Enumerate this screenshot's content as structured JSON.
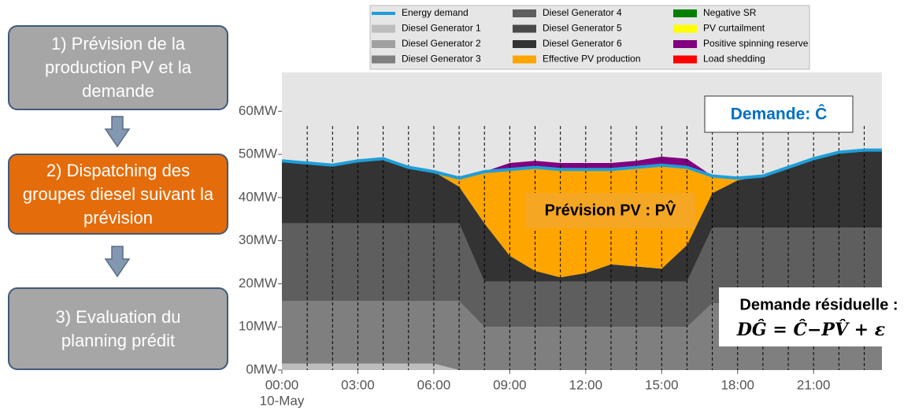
{
  "flow": {
    "steps": [
      "1) Prévision de la production PV et la demande",
      "2) Dispatching des groupes diesel suivant la prévision",
      "3) Evaluation du planning prédit"
    ]
  },
  "chart_data": {
    "type": "area",
    "stacked": true,
    "x": [
      0,
      1,
      2,
      3,
      4,
      5,
      6,
      7,
      8,
      9,
      10,
      11,
      12,
      13,
      14,
      15,
      16,
      17,
      18,
      19,
      20,
      21,
      22,
      23,
      23.7
    ],
    "xlim": [
      0,
      23.7
    ],
    "xticks": [
      {
        "value": 0,
        "label": "00:00"
      },
      {
        "value": 3,
        "label": "03:00"
      },
      {
        "value": 6,
        "label": "06:00"
      },
      {
        "value": 9,
        "label": "09:00"
      },
      {
        "value": 12,
        "label": "12:00"
      },
      {
        "value": 15,
        "label": "15:00"
      },
      {
        "value": 18,
        "label": "18:00"
      },
      {
        "value": 21,
        "label": "21:00"
      }
    ],
    "date_label": "10-May",
    "ylim": [
      0,
      69
    ],
    "yticks": [
      {
        "value": 0,
        "label": "0MW"
      },
      {
        "value": 10,
        "label": "10MW"
      },
      {
        "value": 20,
        "label": "20MW"
      },
      {
        "value": 30,
        "label": "30MW"
      },
      {
        "value": 40,
        "label": "40MW"
      },
      {
        "value": 50,
        "label": "50MW"
      },
      {
        "value": 60,
        "label": "60MW"
      }
    ],
    "series": [
      {
        "name": "Energy demand",
        "type": "line",
        "color": "#1f9ed8",
        "values": [
          48.5,
          48,
          47.5,
          48.5,
          49,
          47,
          46,
          44.5,
          46,
          46.5,
          47,
          46.5,
          46.5,
          46.5,
          47,
          47.5,
          47,
          45,
          44.5,
          45,
          47,
          49,
          50.5,
          51,
          51
        ]
      },
      {
        "name": "Diesel Generator 1",
        "color": "#bdbdbd",
        "values": [
          1.5,
          1.5,
          1.5,
          1.5,
          1.5,
          1.5,
          1.5,
          0,
          0,
          0,
          0,
          0,
          0,
          0,
          0,
          0,
          0,
          0,
          0,
          0,
          0,
          0,
          0,
          0,
          0
        ]
      },
      {
        "name": "Diesel Generator 2",
        "color": "#a0a0a0",
        "values": [
          0,
          0,
          0,
          0,
          0,
          0,
          0,
          0,
          0,
          0,
          0,
          0,
          0,
          0,
          0,
          0,
          0,
          0,
          0,
          0,
          0,
          0,
          0,
          0,
          0
        ]
      },
      {
        "name": "Diesel Generator 3",
        "color": "#7f7f7f",
        "values": [
          14.5,
          14.5,
          14.5,
          14.5,
          14.5,
          14.5,
          14.5,
          16,
          10,
          10,
          10,
          10,
          10,
          10,
          10,
          10,
          10,
          15.5,
          15.5,
          15.5,
          15.5,
          15.5,
          15.5,
          15.5,
          15.5
        ]
      },
      {
        "name": "Diesel Generator 4",
        "color": "#5e5e5e",
        "values": [
          18,
          18,
          18,
          18,
          18,
          18,
          18,
          18,
          10.5,
          10.5,
          10.5,
          10.5,
          10.5,
          10.5,
          10.5,
          10.5,
          10.5,
          17.5,
          17.5,
          17.5,
          17.5,
          17.5,
          17.5,
          17.5,
          17.5
        ]
      },
      {
        "name": "Diesel Generator 5",
        "color": "#4a4a4a",
        "values": [
          0,
          0,
          0,
          0,
          0,
          0,
          0,
          0,
          0,
          0,
          0,
          0,
          0,
          0,
          0,
          0,
          0,
          0,
          0,
          0,
          0,
          0,
          0,
          0,
          0
        ]
      },
      {
        "name": "Diesel Generator 6",
        "color": "#333333",
        "values": [
          14.5,
          14,
          13.5,
          14.5,
          15,
          13,
          12,
          8.5,
          13.5,
          6,
          2.5,
          1,
          2,
          4,
          3.5,
          3,
          8.5,
          8,
          11,
          12,
          14,
          16,
          17.5,
          18,
          18
        ]
      },
      {
        "name": "Effective PV production",
        "color": "#ffa500",
        "values": [
          0,
          0,
          0,
          0,
          0,
          0,
          0,
          2,
          12,
          20,
          24,
          25,
          24,
          22,
          23,
          24,
          18,
          4,
          0.5,
          0,
          0,
          0,
          0,
          0,
          0
        ]
      },
      {
        "name": "Negative SR",
        "color": "#008000",
        "values": [
          0,
          0,
          0,
          0,
          0,
          0,
          0,
          0,
          0,
          0,
          0,
          0,
          0,
          0,
          0,
          0,
          0,
          0,
          0,
          0,
          0,
          0,
          0,
          0,
          0
        ]
      },
      {
        "name": "PV curtailment",
        "color": "#ffff00",
        "values": [
          0,
          0,
          0,
          0,
          0,
          0,
          0,
          0,
          0,
          0,
          0,
          0,
          0,
          0,
          0,
          0,
          0,
          0,
          0,
          0,
          0,
          0,
          0,
          0,
          0
        ]
      },
      {
        "name": "Positive spinning reserve",
        "color": "#800080",
        "values": [
          0,
          0,
          0,
          0,
          0,
          0,
          0,
          0,
          0,
          1.5,
          1.5,
          1.5,
          1.5,
          1.5,
          1.5,
          2,
          2,
          0,
          0,
          0,
          0,
          0,
          0,
          0,
          0
        ]
      },
      {
        "name": "Load shedding",
        "color": "#ff0000",
        "values": [
          0,
          0,
          0,
          0,
          0,
          0,
          0,
          0,
          0,
          0,
          0,
          0,
          0,
          0,
          0,
          0,
          0,
          0,
          0,
          0,
          0,
          0,
          0,
          0,
          0
        ]
      }
    ],
    "annotations": [
      "Demande: Ĉ",
      "Prévision PV : PV̂",
      "Demande résiduelle :",
      "DĜ = Ĉ−PV̂ + ε"
    ]
  }
}
